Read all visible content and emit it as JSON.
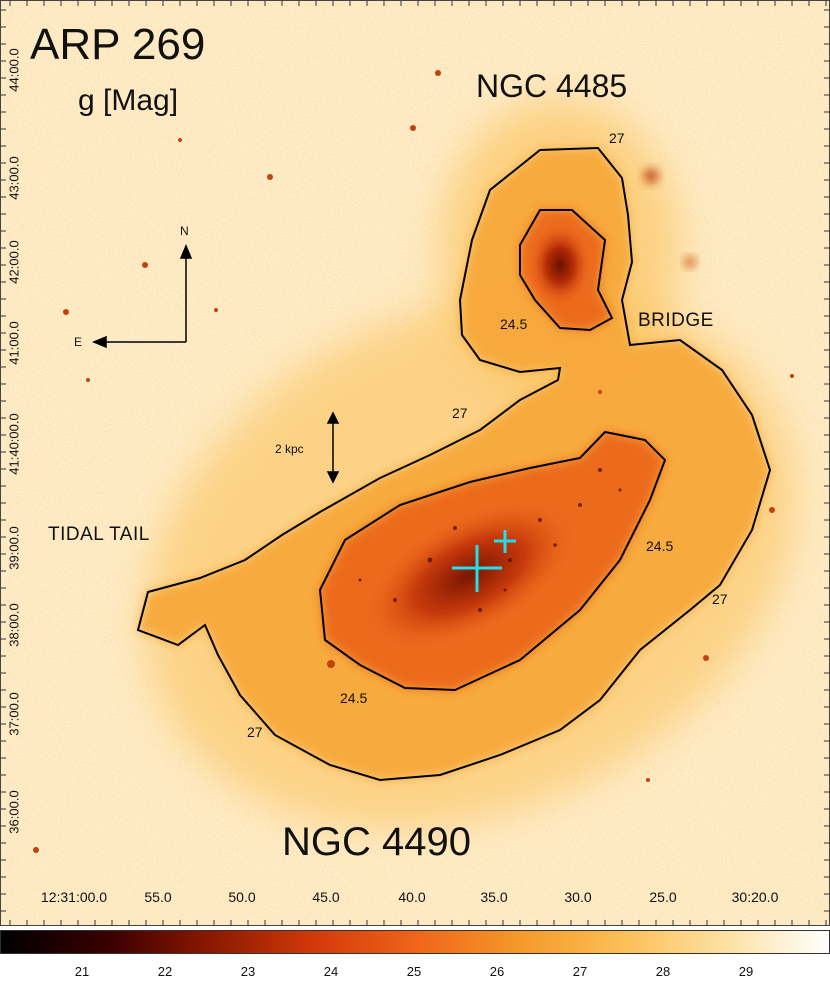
{
  "title": "ARP 269",
  "band_label": "g [Mag]",
  "galaxies": {
    "upper": "NGC 4485",
    "lower": "NGC 4490"
  },
  "regions": {
    "bridge": "BRIDGE",
    "tidal_tail": "TIDAL TAIL"
  },
  "contour_labels": [
    {
      "id": "upper-outer",
      "text": "27"
    },
    {
      "id": "upper-inner",
      "text": "24.5"
    },
    {
      "id": "mid-outer",
      "text": "27"
    },
    {
      "id": "right-inner",
      "text": "24.5"
    },
    {
      "id": "right-outer",
      "text": "27"
    },
    {
      "id": "lower-inner",
      "text": "24.5"
    },
    {
      "id": "lower-outer",
      "text": "27"
    }
  ],
  "compass": {
    "north": "N",
    "east": "E"
  },
  "scale_bar": {
    "label": "2 kpc"
  },
  "dec_axis_labels": [
    "44:00.0",
    "43:00.0",
    "42:00.0",
    "41:00.0",
    "41:40:00.0",
    "39:00.0",
    "38:00.0",
    "37:00.0",
    "36:00.0"
  ],
  "ra_axis_labels": [
    "12:31:00.0",
    "55.0",
    "50.0",
    "45.0",
    "40.0",
    "35.0",
    "30.0",
    "25.0",
    "30:20.0"
  ],
  "colorbar": {
    "ticks": [
      "21",
      "22",
      "23",
      "24",
      "25",
      "26",
      "27",
      "28",
      "29"
    ],
    "colors": [
      "#000000",
      "#3a0000",
      "#8a1800",
      "#d23a0a",
      "#f06418",
      "#f59a2a",
      "#fbbf55",
      "#fde2a6",
      "#ffffff"
    ]
  },
  "colors": {
    "contour": "#000000",
    "nucleus_marker": "#22e0e8",
    "background": "#fde6b8"
  }
}
